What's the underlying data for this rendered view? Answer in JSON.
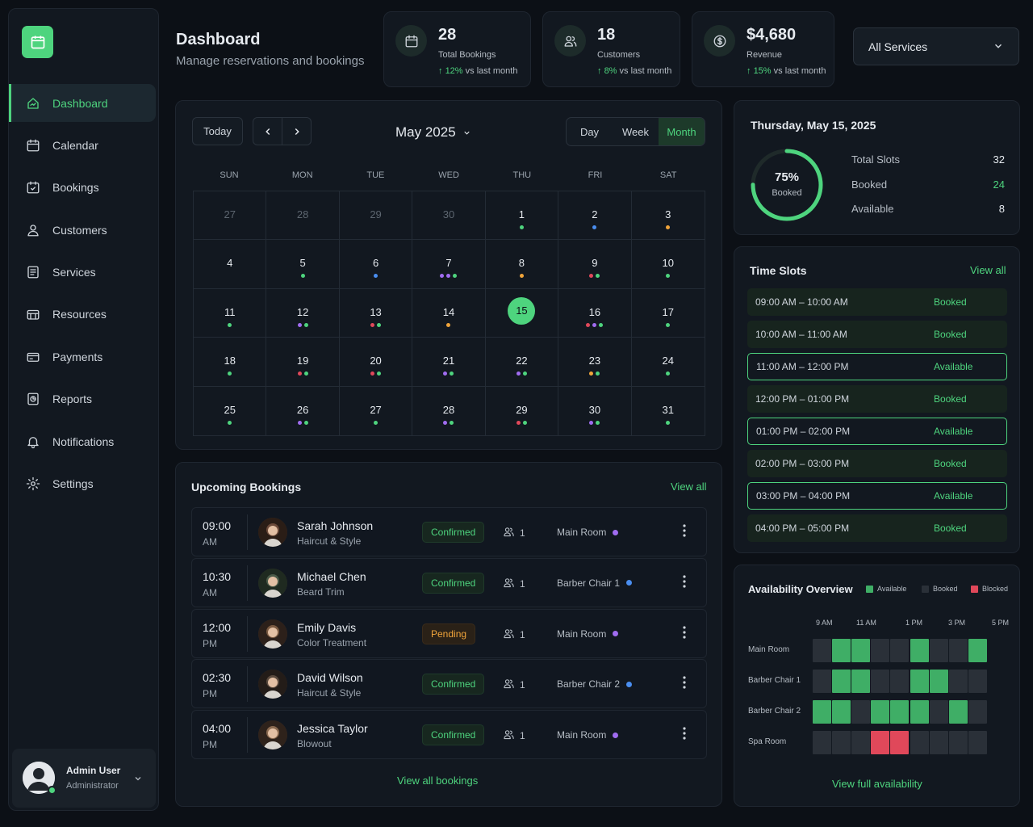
{
  "sidebar": {
    "items": [
      {
        "label": "Dashboard",
        "icon": "home-icon",
        "active": true
      },
      {
        "label": "Calendar",
        "icon": "calendar-icon"
      },
      {
        "label": "Bookings",
        "icon": "calendar-check-icon"
      },
      {
        "label": "Customers",
        "icon": "user-icon"
      },
      {
        "label": "Services",
        "icon": "list-icon"
      },
      {
        "label": "Resources",
        "icon": "resources-icon"
      },
      {
        "label": "Payments",
        "icon": "credit-card-icon"
      },
      {
        "label": "Reports",
        "icon": "report-icon"
      },
      {
        "label": "Notifications",
        "icon": "bell-icon"
      },
      {
        "label": "Settings",
        "icon": "gear-icon"
      }
    ],
    "user": {
      "name": "Admin User",
      "role": "Administrator"
    }
  },
  "header": {
    "title": "Dashboard",
    "subtitle": "Manage reservations and bookings"
  },
  "stats": [
    {
      "value": "28",
      "label": "Total Bookings",
      "trend": "12%",
      "trend_text": "vs last month",
      "icon": "calendar-icon"
    },
    {
      "value": "18",
      "label": "Customers",
      "trend": "8%",
      "trend_text": "vs last month",
      "icon": "users-icon"
    },
    {
      "value": "$4,680",
      "label": "Revenue",
      "trend": "15%",
      "trend_text": "vs last month",
      "icon": "dollar-icon"
    }
  ],
  "service_filter": {
    "value": "All Services"
  },
  "calendar": {
    "today_label": "Today",
    "month_label": "May 2025",
    "views": [
      "Day",
      "Week",
      "Month"
    ],
    "active_view": "Month",
    "weekdays": [
      "SUN",
      "MON",
      "TUE",
      "WED",
      "THU",
      "FRI",
      "SAT"
    ],
    "days": [
      {
        "d": "27",
        "muted": true,
        "dots": []
      },
      {
        "d": "28",
        "muted": true,
        "dots": []
      },
      {
        "d": "29",
        "muted": true,
        "dots": []
      },
      {
        "d": "30",
        "muted": true,
        "dots": []
      },
      {
        "d": "1",
        "dots": [
          "g"
        ]
      },
      {
        "d": "2",
        "dots": [
          "b"
        ]
      },
      {
        "d": "3",
        "dots": [
          "o"
        ]
      },
      {
        "d": "4",
        "dots": []
      },
      {
        "d": "5",
        "dots": [
          "g"
        ]
      },
      {
        "d": "6",
        "dots": [
          "b"
        ]
      },
      {
        "d": "7",
        "dots": [
          "p",
          "p",
          "g"
        ]
      },
      {
        "d": "8",
        "dots": [
          "o"
        ]
      },
      {
        "d": "9",
        "dots": [
          "r",
          "g"
        ]
      },
      {
        "d": "10",
        "dots": [
          "g"
        ]
      },
      {
        "d": "11",
        "dots": [
          "g"
        ]
      },
      {
        "d": "12",
        "dots": [
          "p",
          "g"
        ]
      },
      {
        "d": "13",
        "dots": [
          "r",
          "g"
        ]
      },
      {
        "d": "14",
        "dots": [
          "o"
        ]
      },
      {
        "d": "15",
        "today": true,
        "dots": []
      },
      {
        "d": "16",
        "dots": [
          "r",
          "p",
          "g"
        ]
      },
      {
        "d": "17",
        "dots": [
          "g"
        ]
      },
      {
        "d": "18",
        "dots": [
          "g"
        ]
      },
      {
        "d": "19",
        "dots": [
          "r",
          "g"
        ]
      },
      {
        "d": "20",
        "dots": [
          "r",
          "g"
        ]
      },
      {
        "d": "21",
        "dots": [
          "p",
          "g"
        ]
      },
      {
        "d": "22",
        "dots": [
          "p",
          "g"
        ]
      },
      {
        "d": "23",
        "dots": [
          "o",
          "g"
        ]
      },
      {
        "d": "24",
        "dots": [
          "g"
        ]
      },
      {
        "d": "25",
        "dots": [
          "g"
        ]
      },
      {
        "d": "26",
        "dots": [
          "p",
          "g"
        ]
      },
      {
        "d": "27",
        "dots": [
          "g"
        ]
      },
      {
        "d": "28",
        "dots": [
          "p",
          "g"
        ]
      },
      {
        "d": "29",
        "dots": [
          "r",
          "g"
        ]
      },
      {
        "d": "30",
        "dots": [
          "p",
          "g"
        ]
      },
      {
        "d": "31",
        "dots": [
          "g"
        ]
      }
    ]
  },
  "summary": {
    "date": "Thursday, May 15, 2025",
    "percent": "75%",
    "percent_value": 0.75,
    "percent_label": "Booked",
    "rows": [
      {
        "label": "Total Slots",
        "value": "32"
      },
      {
        "label": "Booked",
        "value": "24",
        "green": true
      },
      {
        "label": "Available",
        "value": "8"
      }
    ]
  },
  "time_slots": {
    "title": "Time Slots",
    "view_all": "View all",
    "items": [
      {
        "time": "09:00 AM – 10:00 AM",
        "status": "Booked"
      },
      {
        "time": "10:00 AM – 11:00 AM",
        "status": "Booked"
      },
      {
        "time": "11:00 AM – 12:00 PM",
        "status": "Available"
      },
      {
        "time": "12:00 PM – 01:00 PM",
        "status": "Booked"
      },
      {
        "time": "01:00 PM – 02:00 PM",
        "status": "Available"
      },
      {
        "time": "02:00 PM – 03:00 PM",
        "status": "Booked"
      },
      {
        "time": "03:00 PM – 04:00 PM",
        "status": "Available"
      },
      {
        "time": "04:00 PM – 05:00 PM",
        "status": "Booked"
      }
    ]
  },
  "bookings": {
    "title": "Upcoming Bookings",
    "view_all": "View all",
    "footer": "View all bookings",
    "items": [
      {
        "time": "09:00",
        "ampm": "AM",
        "name": "Sarah Johnson",
        "service": "Haircut & Style",
        "status": "Confirmed",
        "guests": "1",
        "resource": "Main Room",
        "dot": "p"
      },
      {
        "time": "10:30",
        "ampm": "AM",
        "name": "Michael Chen",
        "service": "Beard Trim",
        "status": "Confirmed",
        "guests": "1",
        "resource": "Barber Chair 1",
        "dot": "b"
      },
      {
        "time": "12:00",
        "ampm": "PM",
        "name": "Emily Davis",
        "service": "Color Treatment",
        "status": "Pending",
        "guests": "1",
        "resource": "Main Room",
        "dot": "p"
      },
      {
        "time": "02:30",
        "ampm": "PM",
        "name": "David Wilson",
        "service": "Haircut & Style",
        "status": "Confirmed",
        "guests": "1",
        "resource": "Barber Chair 2",
        "dot": "b"
      },
      {
        "time": "04:00",
        "ampm": "PM",
        "name": "Jessica Taylor",
        "service": "Blowout",
        "status": "Confirmed",
        "guests": "1",
        "resource": "Main Room",
        "dot": "p"
      }
    ]
  },
  "availability": {
    "title": "Availability Overview",
    "legend": [
      {
        "label": "Available",
        "color": "#3fae66"
      },
      {
        "label": "Booked",
        "color": "#2a3038"
      },
      {
        "label": "Blocked",
        "color": "#e0485a"
      }
    ],
    "hours": [
      "9 AM",
      "11 AM",
      "1 PM",
      "3 PM",
      "5 PM"
    ],
    "rows": [
      {
        "label": "Main Room",
        "cells": [
          "b",
          "a",
          "a",
          "b",
          "b",
          "a",
          "b",
          "b",
          "a"
        ]
      },
      {
        "label": "Barber Chair 1",
        "cells": [
          "b",
          "a",
          "a",
          "b",
          "b",
          "a",
          "a",
          "b",
          "b"
        ]
      },
      {
        "label": "Barber Chair 2",
        "cells": [
          "a",
          "a",
          "b",
          "a",
          "a",
          "a",
          "b",
          "a",
          "b"
        ]
      },
      {
        "label": "Spa Room",
        "cells": [
          "b",
          "b",
          "b",
          "x",
          "x",
          "b",
          "b",
          "b",
          "b"
        ]
      }
    ],
    "footer": "View full availability"
  },
  "colors": {
    "accent": "#4ed47e",
    "g": "#4ed47e",
    "b": "#4a8ef0",
    "o": "#f0a43a",
    "p": "#a06cf0",
    "r": "#e0485a"
  }
}
